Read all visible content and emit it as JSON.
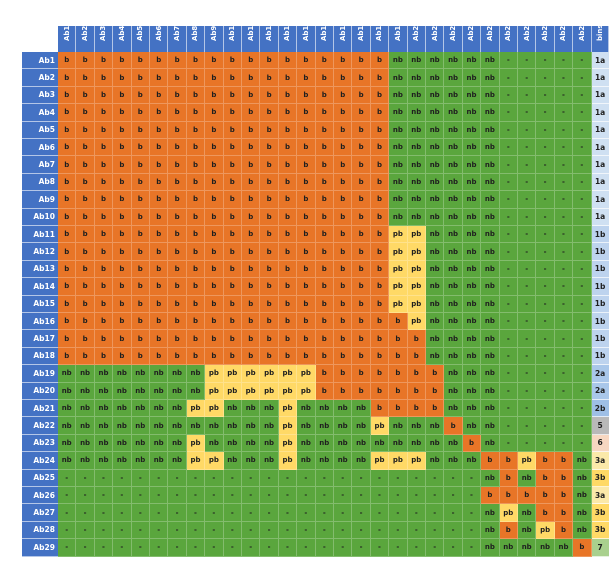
{
  "columns": [
    "Ab1",
    "Ab2",
    "Ab3",
    "Ab4",
    "Ab5",
    "Ab6",
    "Ab7",
    "Ab8",
    "Ab9",
    "Ab10",
    "Ab11",
    "Ab12",
    "Ab13",
    "Ab14",
    "Ab15",
    "Ab16",
    "Ab17",
    "Ab18",
    "Ab19",
    "Ab20",
    "Ab21",
    "Ab22",
    "Ab23",
    "Ab24",
    "Ab25",
    "Ab26",
    "Ab27",
    "Ab28",
    "Ab29"
  ],
  "bins_header": "bins",
  "rows": [
    {
      "label": "Ab1",
      "cells": [
        "b",
        "b",
        "b",
        "b",
        "b",
        "b",
        "b",
        "b",
        "b",
        "b",
        "b",
        "b",
        "b",
        "b",
        "b",
        "b",
        "b",
        "b",
        "nb",
        "nb",
        "nb",
        "nb",
        "nb",
        "nb",
        "-",
        "-",
        "-",
        "-",
        "-"
      ],
      "bin": "1a"
    },
    {
      "label": "Ab2",
      "cells": [
        "b",
        "b",
        "b",
        "b",
        "b",
        "b",
        "b",
        "b",
        "b",
        "b",
        "b",
        "b",
        "b",
        "b",
        "b",
        "b",
        "b",
        "b",
        "nb",
        "nb",
        "nb",
        "nb",
        "nb",
        "nb",
        "-",
        "-",
        "-",
        "-",
        "-"
      ],
      "bin": "1a"
    },
    {
      "label": "Ab3",
      "cells": [
        "b",
        "b",
        "b",
        "b",
        "b",
        "b",
        "b",
        "b",
        "b",
        "b",
        "b",
        "b",
        "b",
        "b",
        "b",
        "b",
        "b",
        "b",
        "nb",
        "nb",
        "nb",
        "nb",
        "nb",
        "nb",
        "-",
        "-",
        "-",
        "-",
        "-"
      ],
      "bin": "1a"
    },
    {
      "label": "Ab4",
      "cells": [
        "b",
        "b",
        "b",
        "b",
        "b",
        "b",
        "b",
        "b",
        "b",
        "b",
        "b",
        "b",
        "b",
        "b",
        "b",
        "b",
        "b",
        "b",
        "nb",
        "nb",
        "nb",
        "nb",
        "nb",
        "nb",
        "-",
        "-",
        "-",
        "-",
        "-"
      ],
      "bin": "1a"
    },
    {
      "label": "Ab5",
      "cells": [
        "b",
        "b",
        "b",
        "b",
        "b",
        "b",
        "b",
        "b",
        "b",
        "b",
        "b",
        "b",
        "b",
        "b",
        "b",
        "b",
        "b",
        "b",
        "nb",
        "nb",
        "nb",
        "nb",
        "nb",
        "nb",
        "-",
        "-",
        "-",
        "-",
        "-"
      ],
      "bin": "1a"
    },
    {
      "label": "Ab6",
      "cells": [
        "b",
        "b",
        "b",
        "b",
        "b",
        "b",
        "b",
        "b",
        "b",
        "b",
        "b",
        "b",
        "b",
        "b",
        "b",
        "b",
        "b",
        "b",
        "nb",
        "nb",
        "nb",
        "nb",
        "nb",
        "nb",
        "-",
        "-",
        "-",
        "-",
        "-"
      ],
      "bin": "1a"
    },
    {
      "label": "Ab7",
      "cells": [
        "b",
        "b",
        "b",
        "b",
        "b",
        "b",
        "b",
        "b",
        "b",
        "b",
        "b",
        "b",
        "b",
        "b",
        "b",
        "b",
        "b",
        "b",
        "nb",
        "nb",
        "nb",
        "nb",
        "nb",
        "nb",
        "-",
        "-",
        "-",
        "-",
        "-"
      ],
      "bin": "1a"
    },
    {
      "label": "Ab8",
      "cells": [
        "b",
        "b",
        "b",
        "b",
        "b",
        "b",
        "b",
        "b",
        "b",
        "b",
        "b",
        "b",
        "b",
        "b",
        "b",
        "b",
        "b",
        "b",
        "nb",
        "nb",
        "nb",
        "nb",
        "nb",
        "nb",
        "-",
        "-",
        "-",
        "-",
        "-"
      ],
      "bin": "1a"
    },
    {
      "label": "Ab9",
      "cells": [
        "b",
        "b",
        "b",
        "b",
        "b",
        "b",
        "b",
        "b",
        "b",
        "b",
        "b",
        "b",
        "b",
        "b",
        "b",
        "b",
        "b",
        "b",
        "nb",
        "nb",
        "nb",
        "nb",
        "nb",
        "nb",
        "-",
        "-",
        "-",
        "-",
        "-"
      ],
      "bin": "1a"
    },
    {
      "label": "Ab10",
      "cells": [
        "b",
        "b",
        "b",
        "b",
        "b",
        "b",
        "b",
        "b",
        "b",
        "b",
        "b",
        "b",
        "b",
        "b",
        "b",
        "b",
        "b",
        "b",
        "nb",
        "nb",
        "nb",
        "nb",
        "nb",
        "nb",
        "-",
        "-",
        "-",
        "-",
        "-"
      ],
      "bin": "1a"
    },
    {
      "label": "Ab11",
      "cells": [
        "b",
        "b",
        "b",
        "b",
        "b",
        "b",
        "b",
        "b",
        "b",
        "b",
        "b",
        "b",
        "b",
        "b",
        "b",
        "b",
        "b",
        "b",
        "pb",
        "pb",
        "nb",
        "nb",
        "nb",
        "nb",
        "-",
        "-",
        "-",
        "-",
        "-"
      ],
      "bin": "1b"
    },
    {
      "label": "Ab12",
      "cells": [
        "b",
        "b",
        "b",
        "b",
        "b",
        "b",
        "b",
        "b",
        "b",
        "b",
        "b",
        "b",
        "b",
        "b",
        "b",
        "b",
        "b",
        "b",
        "pb",
        "pb",
        "nb",
        "nb",
        "nb",
        "nb",
        "-",
        "-",
        "-",
        "-",
        "-"
      ],
      "bin": "1b"
    },
    {
      "label": "Ab13",
      "cells": [
        "b",
        "b",
        "b",
        "b",
        "b",
        "b",
        "b",
        "b",
        "b",
        "b",
        "b",
        "b",
        "b",
        "b",
        "b",
        "b",
        "b",
        "b",
        "pb",
        "pb",
        "nb",
        "nb",
        "nb",
        "nb",
        "-",
        "-",
        "-",
        "-",
        "-"
      ],
      "bin": "1b"
    },
    {
      "label": "Ab14",
      "cells": [
        "b",
        "b",
        "b",
        "b",
        "b",
        "b",
        "b",
        "b",
        "b",
        "b",
        "b",
        "b",
        "b",
        "b",
        "b",
        "b",
        "b",
        "b",
        "pb",
        "pb",
        "nb",
        "nb",
        "nb",
        "nb",
        "-",
        "-",
        "-",
        "-",
        "-"
      ],
      "bin": "1b"
    },
    {
      "label": "Ab15",
      "cells": [
        "b",
        "b",
        "b",
        "b",
        "b",
        "b",
        "b",
        "b",
        "b",
        "b",
        "b",
        "b",
        "b",
        "b",
        "b",
        "b",
        "b",
        "b",
        "pb",
        "pb",
        "nb",
        "nb",
        "nb",
        "nb",
        "-",
        "-",
        "-",
        "-",
        "-"
      ],
      "bin": "1b"
    },
    {
      "label": "Ab16",
      "cells": [
        "b",
        "b",
        "b",
        "b",
        "b",
        "b",
        "b",
        "b",
        "b",
        "b",
        "b",
        "b",
        "b",
        "b",
        "b",
        "b",
        "b",
        "b",
        "b",
        "pb",
        "nb",
        "nb",
        "nb",
        "nb",
        "-",
        "-",
        "-",
        "-",
        "-"
      ],
      "bin": "1b"
    },
    {
      "label": "Ab17",
      "cells": [
        "b",
        "b",
        "b",
        "b",
        "b",
        "b",
        "b",
        "b",
        "b",
        "b",
        "b",
        "b",
        "b",
        "b",
        "b",
        "b",
        "b",
        "b",
        "b",
        "b",
        "nb",
        "nb",
        "nb",
        "nb",
        "-",
        "-",
        "-",
        "-",
        "-"
      ],
      "bin": "1b"
    },
    {
      "label": "Ab18",
      "cells": [
        "b",
        "b",
        "b",
        "b",
        "b",
        "b",
        "b",
        "b",
        "b",
        "b",
        "b",
        "b",
        "b",
        "b",
        "b",
        "b",
        "b",
        "b",
        "b",
        "b",
        "nb",
        "nb",
        "nb",
        "nb",
        "-",
        "-",
        "-",
        "-",
        "-"
      ],
      "bin": "1b"
    },
    {
      "label": "Ab19",
      "cells": [
        "nb",
        "nb",
        "nb",
        "nb",
        "nb",
        "nb",
        "nb",
        "nb",
        "pb",
        "pb",
        "pb",
        "pb",
        "pb",
        "pb",
        "b",
        "b",
        "b",
        "b",
        "b",
        "b",
        "b",
        "nb",
        "nb",
        "nb",
        "-",
        "-",
        "-",
        "-",
        "-"
      ],
      "bin": "2a"
    },
    {
      "label": "Ab20",
      "cells": [
        "nb",
        "nb",
        "nb",
        "nb",
        "nb",
        "nb",
        "nb",
        "nb",
        "pb",
        "pb",
        "pb",
        "pb",
        "pb",
        "pb",
        "b",
        "b",
        "b",
        "b",
        "b",
        "b",
        "b",
        "nb",
        "nb",
        "nb",
        "-",
        "-",
        "-",
        "-",
        "-"
      ],
      "bin": "2a"
    },
    {
      "label": "Ab21",
      "cells": [
        "nb",
        "nb",
        "nb",
        "nb",
        "nb",
        "nb",
        "nb",
        "pb",
        "pb",
        "nb",
        "nb",
        "nb",
        "pb",
        "nb",
        "nb",
        "nb",
        "nb",
        "b",
        "b",
        "b",
        "b",
        "nb",
        "nb",
        "nb",
        "-",
        "-",
        "-",
        "-",
        "-"
      ],
      "bin": "2b"
    },
    {
      "label": "Ab22",
      "cells": [
        "nb",
        "nb",
        "nb",
        "nb",
        "nb",
        "nb",
        "nb",
        "nb",
        "nb",
        "nb",
        "nb",
        "nb",
        "pb",
        "nb",
        "nb",
        "nb",
        "nb",
        "pb",
        "nb",
        "nb",
        "nb",
        "b",
        "nb",
        "nb",
        "-",
        "-",
        "-",
        "-",
        "-"
      ],
      "bin": "5"
    },
    {
      "label": "Ab23",
      "cells": [
        "nb",
        "nb",
        "nb",
        "nb",
        "nb",
        "nb",
        "nb",
        "pb",
        "nb",
        "nb",
        "nb",
        "nb",
        "pb",
        "nb",
        "nb",
        "nb",
        "nb",
        "nb",
        "nb",
        "nb",
        "nb",
        "nb",
        "b",
        "nb",
        "-",
        "-",
        "-",
        "-",
        "-"
      ],
      "bin": "6"
    },
    {
      "label": "Ab24",
      "cells": [
        "nb",
        "nb",
        "nb",
        "nb",
        "nb",
        "nb",
        "nb",
        "pb",
        "pb",
        "nb",
        "nb",
        "nb",
        "pb",
        "nb",
        "nb",
        "nb",
        "nb",
        "pb",
        "pb",
        "pb",
        "nb",
        "nb",
        "nb",
        "b",
        "b",
        "pb",
        "b",
        "b",
        "nb"
      ],
      "bin": "3a"
    },
    {
      "label": "Ab25",
      "cells": [
        "-",
        "-",
        "-",
        "-",
        "-",
        "-",
        "-",
        "-",
        "-",
        "-",
        "-",
        "-",
        "-",
        "-",
        "-",
        "-",
        "-",
        "-",
        "-",
        "-",
        "-",
        "-",
        "-",
        "nb",
        "b",
        "nb",
        "b",
        "b",
        "nb"
      ],
      "bin": "3b"
    },
    {
      "label": "Ab26",
      "cells": [
        "-",
        "-",
        "-",
        "-",
        "-",
        "-",
        "-",
        "-",
        "-",
        "-",
        "-",
        "-",
        "-",
        "-",
        "-",
        "-",
        "-",
        "-",
        "-",
        "-",
        "-",
        "-",
        "-",
        "b",
        "b",
        "b",
        "b",
        "b",
        "nb"
      ],
      "bin": "3a"
    },
    {
      "label": "Ab27",
      "cells": [
        "-",
        "-",
        "-",
        "-",
        "-",
        "-",
        "-",
        "-",
        "-",
        "-",
        "-",
        "-",
        "-",
        "-",
        "-",
        "-",
        "-",
        "-",
        "-",
        "-",
        "-",
        "-",
        "-",
        "nb",
        "pb",
        "nb",
        "b",
        "b",
        "nb"
      ],
      "bin": "3b"
    },
    {
      "label": "Ab28",
      "cells": [
        "-",
        "-",
        "-",
        "-",
        "-",
        "-",
        "-",
        "-",
        "-",
        "-",
        "-",
        "-",
        "-",
        "-",
        "-",
        "-",
        "-",
        "-",
        "-",
        "-",
        "-",
        "-",
        "-",
        "nb",
        "b",
        "nb",
        "pb",
        "b",
        "nb"
      ],
      "bin": "3b"
    },
    {
      "label": "Ab29",
      "cells": [
        "-",
        "-",
        "-",
        "-",
        "-",
        "-",
        "-",
        "-",
        "-",
        "-",
        "-",
        "-",
        "-",
        "-",
        "-",
        "-",
        "-",
        "-",
        "-",
        "-",
        "-",
        "-",
        "-",
        "nb",
        "nb",
        "nb",
        "nb",
        "nb",
        "b"
      ],
      "bin": "7"
    }
  ],
  "value_colors": {
    "b": "#e87527",
    "pb": "#ffd966",
    "nb": "#5aa63d",
    "-": "#5aa63d"
  },
  "header_color": "#4472c4",
  "bin_colors": {
    "1a": "#cfe0f2",
    "1b": "#bdd3ee",
    "2a": "#a9c7ea",
    "2b": "#9ebfe6",
    "5": "#b9b9b9",
    "6": "#f7d7c1",
    "3a": "#fbe9a9",
    "3b": "#ffd966",
    "7": "#a9d08e"
  }
}
